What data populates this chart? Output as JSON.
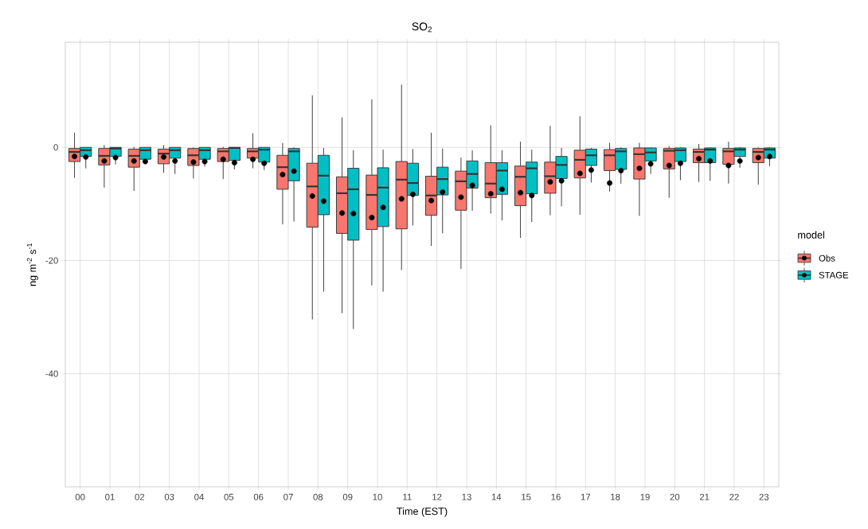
{
  "chart_data": {
    "type": "box",
    "title": "SO$_{2}$",
    "xlabel": "Time (EST)",
    "ylabel": "ng m$^{-2}$ s$^{-1}$",
    "legend_title": "model",
    "categories": [
      "00",
      "01",
      "02",
      "03",
      "04",
      "05",
      "06",
      "07",
      "08",
      "09",
      "10",
      "11",
      "12",
      "13",
      "14",
      "15",
      "16",
      "17",
      "18",
      "19",
      "20",
      "21",
      "22",
      "23"
    ],
    "series": [
      {
        "name": "Obs",
        "color": "#f8766d",
        "boxes": [
          {
            "low": -5.4,
            "q1": -2.5,
            "median": -0.8,
            "q3": -0.2,
            "high": 2.6,
            "mean": -1.6
          },
          {
            "low": -7.1,
            "q1": -3.1,
            "median": -1.5,
            "q3": -0.2,
            "high": 0.4,
            "mean": -2.4
          },
          {
            "low": -7.7,
            "q1": -3.5,
            "median": -1.5,
            "q3": -0.3,
            "high": 0.1,
            "mean": -2.4
          },
          {
            "low": -4.5,
            "q1": -2.9,
            "median": -1.1,
            "q3": -0.3,
            "high": 0.4,
            "mean": -1.7
          },
          {
            "low": -5.5,
            "q1": -3.2,
            "median": -1.4,
            "q3": -0.2,
            "high": 0,
            "mean": -2.6
          },
          {
            "low": -5.6,
            "q1": -2.5,
            "median": -0.7,
            "q3": -0.2,
            "high": 0.1,
            "mean": -2.1
          },
          {
            "low": -3.7,
            "q1": -1.9,
            "median": -0.7,
            "q3": -0.2,
            "high": 2.5,
            "mean": -2.1
          },
          {
            "low": -13.6,
            "q1": -7.4,
            "median": -3.5,
            "q3": -1.4,
            "high": 0.8,
            "mean": -4.8
          },
          {
            "low": -30.4,
            "q1": -14.1,
            "median": -6.9,
            "q3": -2.8,
            "high": 9.2,
            "mean": -8.6
          },
          {
            "low": -29.3,
            "q1": -15.2,
            "median": -8.1,
            "q3": -5.2,
            "high": 5.3,
            "mean": -11.6
          },
          {
            "low": -24.4,
            "q1": -14.5,
            "median": -8.4,
            "q3": -4.9,
            "high": 8.5,
            "mean": -12.4
          },
          {
            "low": -21.7,
            "q1": -14.4,
            "median": -5.7,
            "q3": -2.5,
            "high": 11.1,
            "mean": -9.1
          },
          {
            "low": -17.4,
            "q1": -12.0,
            "median": -8.5,
            "q3": -5.1,
            "high": 2.6,
            "mean": -9.4
          },
          {
            "low": -21.5,
            "q1": -11.1,
            "median": -6.0,
            "q3": -4.2,
            "high": -1.8,
            "mean": -8.8
          },
          {
            "low": -11.7,
            "q1": -8.9,
            "median": -6.4,
            "q3": -2.7,
            "high": 3.9,
            "mean": -8.2
          },
          {
            "low": -16.0,
            "q1": -10.3,
            "median": -5.2,
            "q3": -3.3,
            "high": 1.0,
            "mean": -8.0
          },
          {
            "low": -12.0,
            "q1": -8.1,
            "median": -5.1,
            "q3": -2.6,
            "high": 3.8,
            "mean": -6.1
          },
          {
            "low": -11.9,
            "q1": -5.4,
            "median": -2.2,
            "q3": -0.5,
            "high": 5.5,
            "mean": -4.6
          },
          {
            "low": -7.8,
            "q1": -4.1,
            "median": -1.4,
            "q3": -0.4,
            "high": 0.8,
            "mean": -6.3
          },
          {
            "low": -12.1,
            "q1": -5.6,
            "median": -1.2,
            "q3": -0.1,
            "high": 0.8,
            "mean": -3.7
          },
          {
            "low": -8.9,
            "q1": -3.8,
            "median": -0.6,
            "q3": -0.2,
            "high": 0.2,
            "mean": -3.2
          },
          {
            "low": -6.1,
            "q1": -2.7,
            "median": -0.8,
            "q3": -0.3,
            "high": 0.6,
            "mean": -2.0
          },
          {
            "low": -6.4,
            "q1": -3.0,
            "median": -0.7,
            "q3": -0.2,
            "high": 1.0,
            "mean": -3.2
          },
          {
            "low": -6.6,
            "q1": -2.7,
            "median": -0.8,
            "q3": -0.2,
            "high": 0,
            "mean": -1.8
          }
        ]
      },
      {
        "name": "STAGE",
        "color": "#00bfc4",
        "boxes": [
          {
            "low": -3.7,
            "q1": -1.6,
            "median": -0.5,
            "q3": 0,
            "high": 0,
            "mean": -1.7
          },
          {
            "low": -3.0,
            "q1": -1.6,
            "median": -0.2,
            "q3": 0,
            "high": 0,
            "mean": -1.8
          },
          {
            "low": -2.7,
            "q1": -2.1,
            "median": -0.5,
            "q3": 0,
            "high": 0,
            "mean": -2.5
          },
          {
            "low": -4.7,
            "q1": -1.9,
            "median": -0.5,
            "q3": 0,
            "high": 0,
            "mean": -2.4
          },
          {
            "low": -3.4,
            "q1": -2.1,
            "median": -0.5,
            "q3": 0,
            "high": 0,
            "mean": -2.5
          },
          {
            "low": -3.9,
            "q1": -2.3,
            "median": -0.1,
            "q3": 0,
            "high": 0,
            "mean": -2.7
          },
          {
            "low": -4.0,
            "q1": -2.6,
            "median": -0.4,
            "q3": 0,
            "high": 0,
            "mean": -2.8
          },
          {
            "low": -13.1,
            "q1": -5.9,
            "median": -0.7,
            "q3": -0.2,
            "high": 0,
            "mean": -4.2
          },
          {
            "low": -25.5,
            "q1": -11.9,
            "median": -5.0,
            "q3": -1.4,
            "high": -0.1,
            "mean": -9.5
          },
          {
            "low": -32.1,
            "q1": -16.4,
            "median": -7.4,
            "q3": -3.7,
            "high": -0.5,
            "mean": -11.7
          },
          {
            "low": -25.5,
            "q1": -14.0,
            "median": -7.1,
            "q3": -3.6,
            "high": -0.4,
            "mean": -10.6
          },
          {
            "low": -13.8,
            "q1": -8.5,
            "median": -6.3,
            "q3": -2.8,
            "high": -0.3,
            "mean": -8.3
          },
          {
            "low": -15.2,
            "q1": -8.4,
            "median": -5.6,
            "q3": -3.5,
            "high": -0.2,
            "mean": -7.9
          },
          {
            "low": -11.2,
            "q1": -7.2,
            "median": -4.7,
            "q3": -2.4,
            "high": -0.5,
            "mean": -6.7
          },
          {
            "low": -12.9,
            "q1": -8.3,
            "median": -4.1,
            "q3": -2.7,
            "high": -0.5,
            "mean": -7.4
          },
          {
            "low": -13.2,
            "q1": -8.2,
            "median": -3.7,
            "q3": -2.6,
            "high": -0.4,
            "mean": -8.5
          },
          {
            "low": -10.4,
            "q1": -5.5,
            "median": -3.1,
            "q3": -1.6,
            "high": -0.1,
            "mean": -5.9
          },
          {
            "low": -6.2,
            "q1": -3.2,
            "median": -1.4,
            "q3": -0.3,
            "high": -0.1,
            "mean": -4.0
          },
          {
            "low": -6.4,
            "q1": -3.9,
            "median": -0.7,
            "q3": -0.2,
            "high": 0,
            "mean": -4.1
          },
          {
            "low": -4.7,
            "q1": -2.4,
            "median": -0.9,
            "q3": -0.1,
            "high": 0,
            "mean": -2.9
          },
          {
            "low": -5.8,
            "q1": -2.5,
            "median": -0.5,
            "q3": -0.1,
            "high": 0,
            "mean": -2.8
          },
          {
            "low": -5.9,
            "q1": -2.7,
            "median": -0.4,
            "q3": -0.1,
            "high": 0,
            "mean": -2.4
          },
          {
            "low": -3.6,
            "q1": -1.6,
            "median": -0.4,
            "q3": -0.1,
            "high": 0,
            "mean": -2.4
          },
          {
            "low": -3.3,
            "q1": -1.9,
            "median": -0.4,
            "q3": -0.1,
            "high": 0,
            "mean": -1.6
          }
        ]
      }
    ],
    "ylim": [
      -60,
      18.6
    ],
    "yticks": [
      -40,
      -20,
      0
    ],
    "grid": true,
    "legend": "right"
  }
}
